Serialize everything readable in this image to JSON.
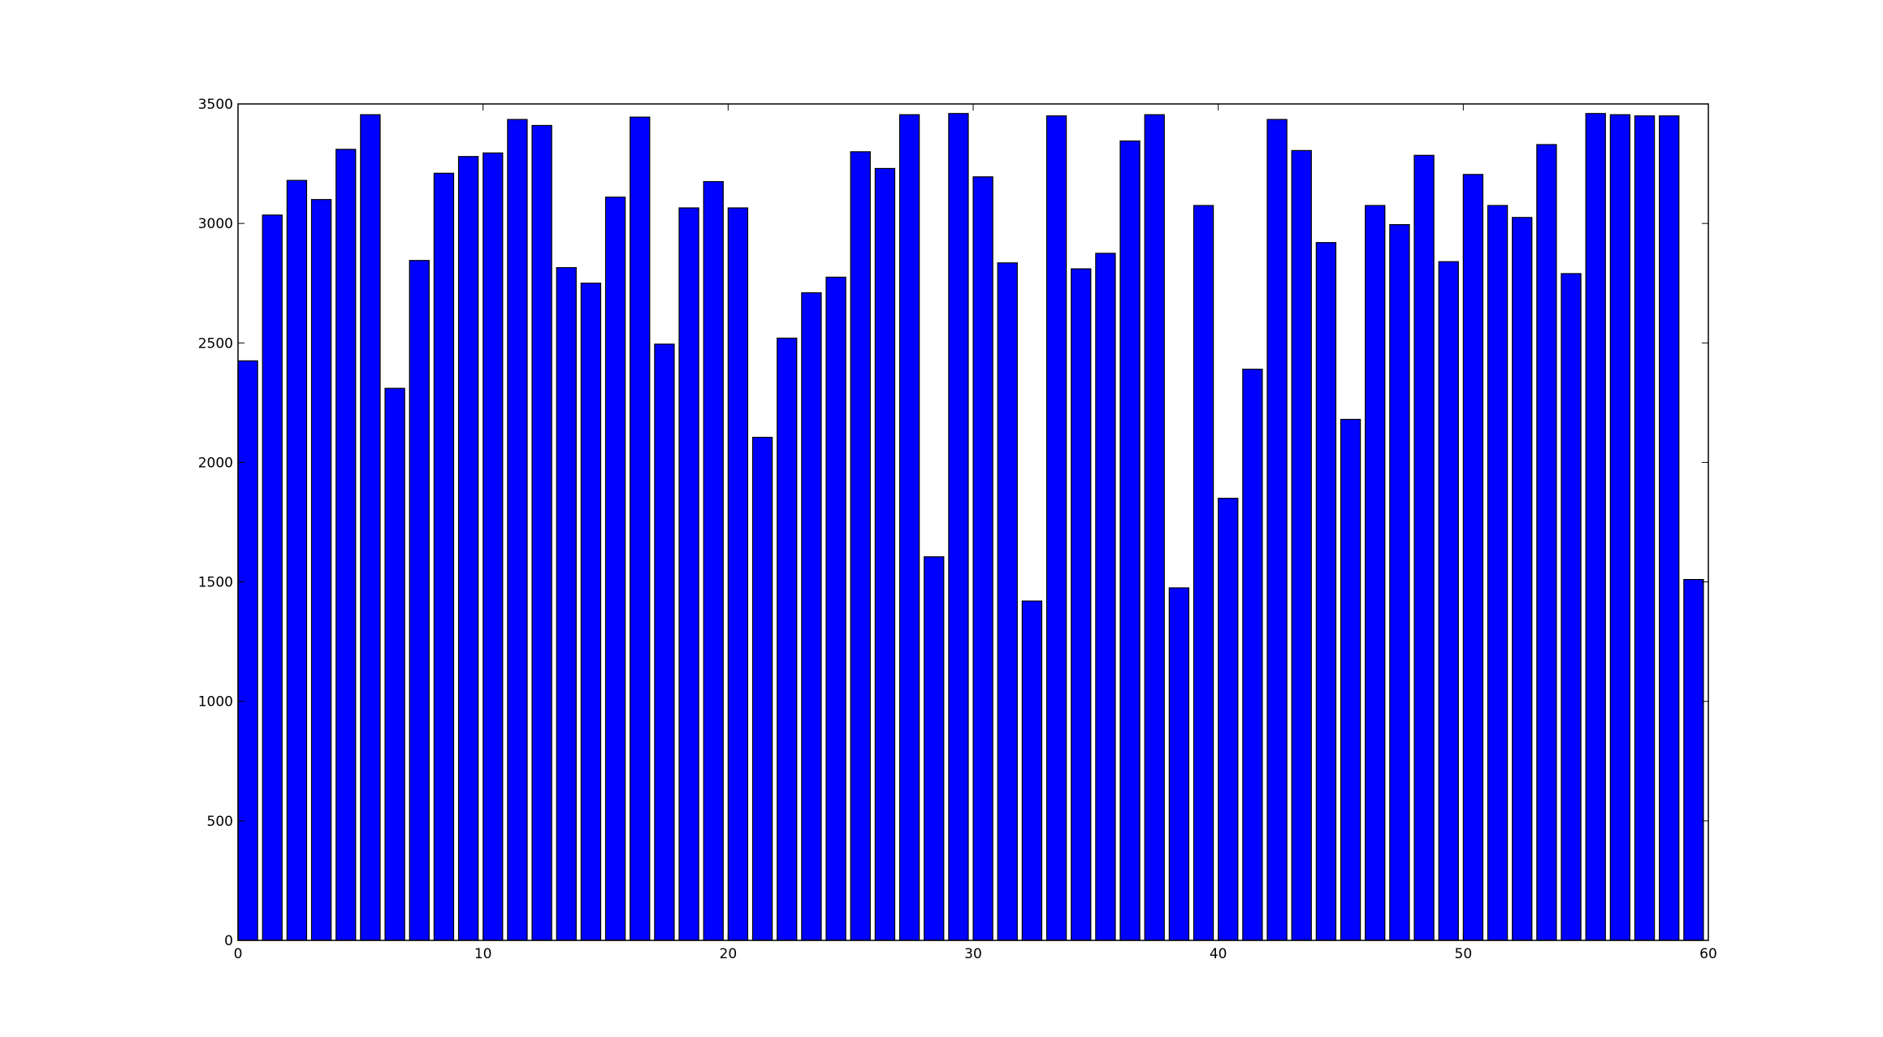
{
  "chart_data": {
    "type": "bar",
    "x": [
      0,
      1,
      2,
      3,
      4,
      5,
      6,
      7,
      8,
      9,
      10,
      11,
      12,
      13,
      14,
      15,
      16,
      17,
      18,
      19,
      20,
      21,
      22,
      23,
      24,
      25,
      26,
      27,
      28,
      29,
      30,
      31,
      32,
      33,
      34,
      35,
      36,
      37,
      38,
      39,
      40,
      41,
      42,
      43,
      44,
      45,
      46,
      47,
      48,
      49,
      50,
      51,
      52,
      53,
      54,
      55,
      56,
      57,
      58,
      59
    ],
    "values": [
      2425,
      3035,
      3180,
      3100,
      3310,
      3455,
      2310,
      2845,
      3210,
      3280,
      3295,
      3435,
      3410,
      2815,
      2750,
      3110,
      3445,
      2495,
      3065,
      3175,
      3065,
      2105,
      2520,
      2710,
      2775,
      3300,
      3230,
      3455,
      1605,
      3460,
      3195,
      2835,
      1420,
      3450,
      2810,
      2875,
      3345,
      3455,
      1475,
      3075,
      1850,
      2390,
      3435,
      3305,
      2920,
      2180,
      3075,
      2995,
      3285,
      2840,
      3205,
      3075,
      3025,
      3330,
      2790,
      3460,
      3455,
      3450,
      3450,
      1510
    ],
    "bar_width": 0.8,
    "xlim": [
      0,
      60
    ],
    "ylim": [
      0,
      3500
    ],
    "xticks": [
      0,
      10,
      20,
      30,
      40,
      50,
      60
    ],
    "yticks": [
      0,
      500,
      1000,
      1500,
      2000,
      2500,
      3000,
      3500
    ],
    "title": "",
    "xlabel": "",
    "ylabel": "",
    "grid": false,
    "colors": {
      "bar_fill": "#0000ff",
      "bar_edge": "#000000",
      "axes_edge": "#000000",
      "background": "#ffffff"
    }
  }
}
